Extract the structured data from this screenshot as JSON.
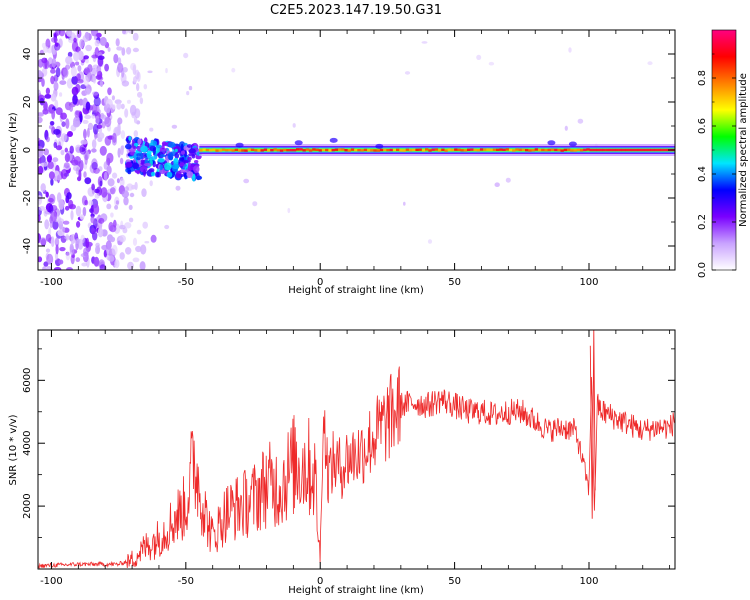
{
  "figure_title": "C2E5.2023.147.19.50.G31",
  "chart_data": [
    {
      "type": "heatmap",
      "title": "C2E5.2023.147.19.50.G31",
      "xlabel": "Height of straight line (km)",
      "ylabel": "Frequency (Hz)",
      "xlim": [
        -105,
        132
      ],
      "ylim": [
        -50,
        50
      ],
      "xticks": [
        -100,
        -50,
        0,
        50,
        100
      ],
      "yticks": [
        -40,
        -20,
        0,
        20,
        40
      ],
      "grid": false,
      "colorbar": {
        "label": "Normalized spectral amplitude",
        "range": [
          0,
          1
        ],
        "ticks": [
          0.0,
          0.2,
          0.4,
          0.6,
          0.8
        ],
        "colormap": [
          "#ffffff",
          "#c9a3ff",
          "#7a00ff",
          "#0000ff",
          "#00e5ff",
          "#00ff00",
          "#ffff00",
          "#ff8000",
          "#ff0000",
          "#ff0080"
        ]
      },
      "features": [
        {
          "description_x_range": [
            -105,
            -65
          ],
          "frequency_range": [
            -50,
            50
          ],
          "amplitude": 0.15
        },
        {
          "description_x_range": [
            -72,
            -45
          ],
          "frequency_range": [
            -12,
            8
          ],
          "amplitude": 0.35
        },
        {
          "description_x_range": [
            -45,
            132
          ],
          "frequency_range": [
            -2,
            2
          ],
          "amplitude": 0.95
        }
      ]
    },
    {
      "type": "line",
      "xlabel": "Height of straight line (km)",
      "ylabel": "SNR (10 * v/v)",
      "xlim": [
        -105,
        132
      ],
      "ylim": [
        0,
        7600
      ],
      "xticks": [
        -100,
        -50,
        0,
        50,
        100
      ],
      "yticks": [
        2000,
        4000,
        6000
      ],
      "grid": false,
      "series": [
        {
          "color": "#ee2a2a",
          "x": [
            -105,
            -90,
            -75,
            -70,
            -65,
            -60,
            -55,
            -50,
            -47,
            -45,
            -42,
            -40,
            -35,
            -30,
            -25,
            -20,
            -15,
            -10,
            -5,
            -2,
            0,
            1,
            3,
            5,
            8,
            10,
            15,
            20,
            25,
            30,
            35,
            40,
            45,
            50,
            55,
            60,
            65,
            70,
            75,
            80,
            85,
            90,
            95,
            98,
            100,
            101,
            102,
            103,
            105,
            110,
            115,
            120,
            125,
            130,
            132
          ],
          "y": [
            100,
            150,
            150,
            300,
            700,
            1000,
            1500,
            2000,
            3500,
            2600,
            1500,
            1000,
            1800,
            2000,
            2200,
            2700,
            2600,
            3300,
            3300,
            3000,
            200,
            5000,
            3000,
            3400,
            3200,
            3500,
            3700,
            4200,
            4700,
            5200,
            5300,
            5200,
            5400,
            5200,
            5000,
            5000,
            4900,
            5000,
            5000,
            4700,
            4400,
            4500,
            4400,
            3300,
            2500,
            6500,
            1600,
            5200,
            5000,
            4800,
            4600,
            4400,
            4500,
            4500,
            4700
          ]
        }
      ]
    }
  ]
}
